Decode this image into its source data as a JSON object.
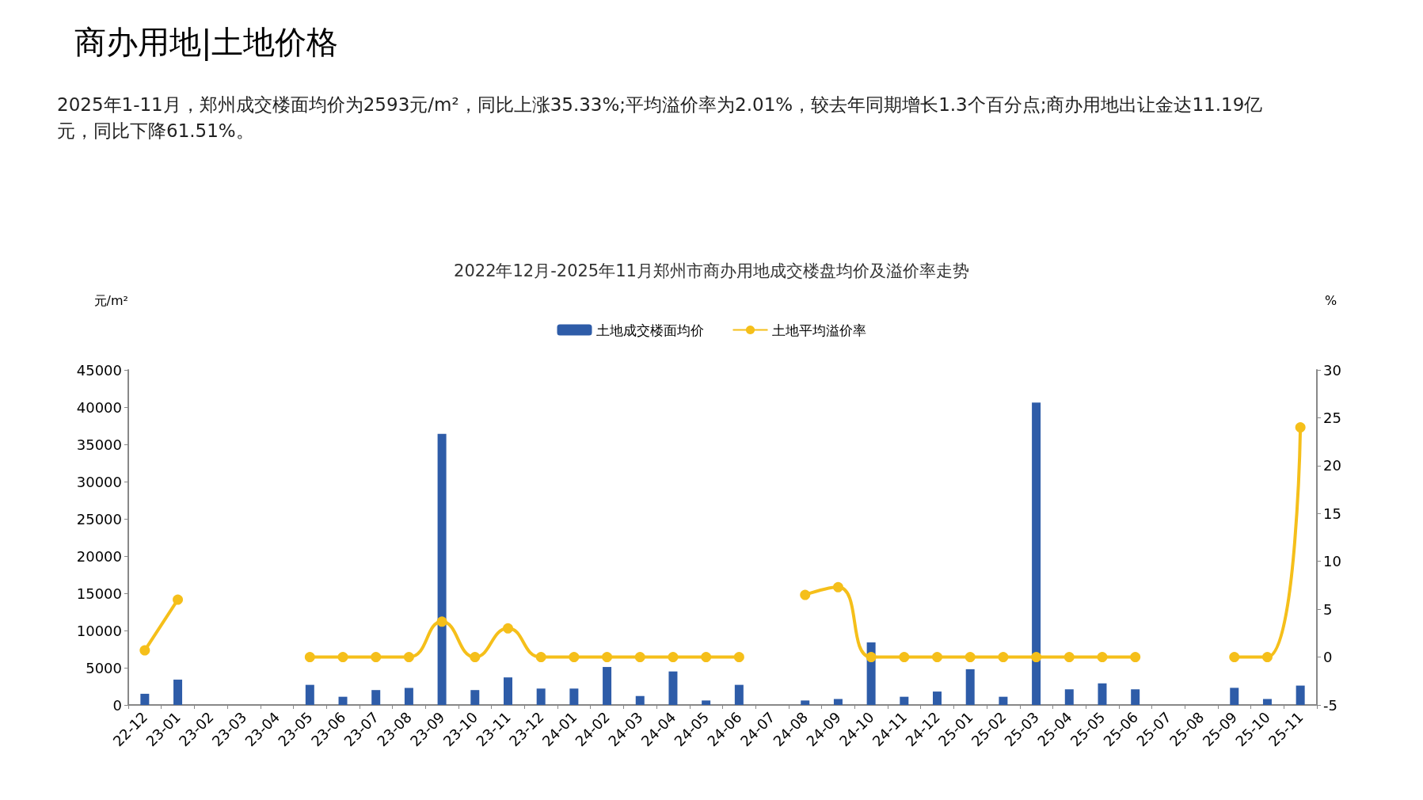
{
  "chart_data": {
    "type": "bar",
    "title": "2022年12月-2025年11月郑州市商办用地成交楼盘均价及溢价率走势",
    "ylabel": "元/m²",
    "y2label": "%",
    "annotations": [
      "商办用地|土地价格",
      "2025年1-11月，郑州成交楼面均价为2593元/m²，同比上涨35.33%;平均溢价率为2.01%，较去年同期增长1.3个百分点;商办用地出让金达11.19亿元，同比下降61.51%。"
    ],
    "categories": [
      "22-12",
      "23-01",
      "23-02",
      "23-03",
      "23-04",
      "23-05",
      "23-06",
      "23-07",
      "23-08",
      "23-09",
      "23-10",
      "23-11",
      "23-12",
      "24-01",
      "24-02",
      "24-03",
      "24-04",
      "24-05",
      "24-06",
      "24-07",
      "24-08",
      "24-09",
      "24-10",
      "24-11",
      "24-12",
      "25-01",
      "25-02",
      "25-03",
      "25-04",
      "25-05",
      "25-06",
      "25-07",
      "25-08",
      "25-09",
      "25-10",
      "25-11"
    ],
    "series": [
      {
        "name": "土地成交楼面均价",
        "color": "#2e5ca8",
        "values": [
          1500,
          3400,
          null,
          null,
          null,
          2700,
          1100,
          2000,
          2300,
          36400,
          2000,
          3700,
          2200,
          2200,
          5100,
          1200,
          4500,
          600,
          2700,
          null,
          600,
          800,
          8400,
          1100,
          1800,
          4800,
          1100,
          40600,
          2100,
          2900,
          2100,
          null,
          null,
          2300,
          800,
          2600
        ]
      },
      {
        "name": "土地平均溢价率",
        "type": "line",
        "axis": "y2",
        "color": "#f5bf1a",
        "values": [
          0.7,
          6.0,
          null,
          null,
          null,
          0,
          0,
          0,
          0,
          3.7,
          0,
          3.0,
          0,
          0,
          0,
          0,
          0,
          0,
          0,
          null,
          6.5,
          7.3,
          0,
          0,
          0,
          0,
          0,
          0,
          0,
          0,
          0,
          null,
          null,
          0,
          0,
          24.0
        ]
      }
    ],
    "ylim": [
      0,
      45000
    ],
    "yticks": [
      0,
      5000,
      10000,
      15000,
      20000,
      25000,
      30000,
      35000,
      40000,
      45000
    ],
    "y2lim": [
      -5,
      30
    ],
    "y2ticks": [
      -5,
      0,
      5,
      10,
      15,
      20,
      25,
      30
    ],
    "legend": "top",
    "marker": "circle",
    "grid": false
  }
}
